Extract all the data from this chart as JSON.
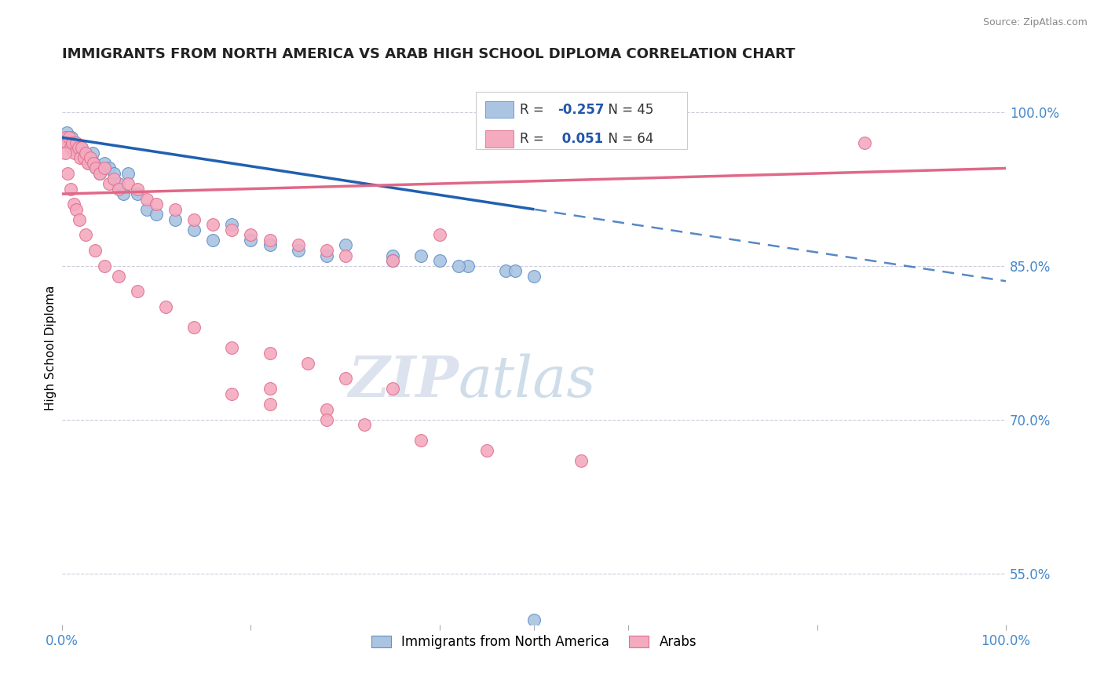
{
  "title": "IMMIGRANTS FROM NORTH AMERICA VS ARAB HIGH SCHOOL DIPLOMA CORRELATION CHART",
  "source": "Source: ZipAtlas.com",
  "ylabel": "High School Diploma",
  "xlim": [
    0.0,
    1.0
  ],
  "ylim": [
    0.5,
    1.04
  ],
  "yticks": [
    0.55,
    0.7,
    0.85,
    1.0
  ],
  "ytick_labels": [
    "55.0%",
    "70.0%",
    "85.0%",
    "100.0%"
  ],
  "blue_R": -0.257,
  "blue_N": 45,
  "pink_R": 0.051,
  "pink_N": 64,
  "blue_color": "#aac4e2",
  "pink_color": "#f4aabf",
  "blue_edge_color": "#6090c8",
  "pink_edge_color": "#e07090",
  "blue_line_color": "#2060b0",
  "pink_line_color": "#e06888",
  "legend_blue_label": "Immigrants from North America",
  "legend_pink_label": "Arabs",
  "watermark_zip": "ZIP",
  "watermark_atlas": "atlas",
  "blue_scatter_x": [
    0.005,
    0.008,
    0.01,
    0.012,
    0.014,
    0.016,
    0.018,
    0.02,
    0.022,
    0.024,
    0.026,
    0.028,
    0.03,
    0.032,
    0.034,
    0.036,
    0.04,
    0.045,
    0.05,
    0.055,
    0.06,
    0.065,
    0.07,
    0.08,
    0.09,
    0.1,
    0.12,
    0.14,
    0.16,
    0.18,
    0.2,
    0.22,
    0.25,
    0.28,
    0.3,
    0.35,
    0.38,
    0.4,
    0.43,
    0.47,
    0.5,
    0.35,
    0.42,
    0.48,
    0.5
  ],
  "blue_scatter_y": [
    0.98,
    0.97,
    0.975,
    0.97,
    0.97,
    0.965,
    0.96,
    0.965,
    0.96,
    0.955,
    0.955,
    0.95,
    0.955,
    0.96,
    0.95,
    0.945,
    0.94,
    0.95,
    0.945,
    0.94,
    0.93,
    0.92,
    0.94,
    0.92,
    0.905,
    0.9,
    0.895,
    0.885,
    0.875,
    0.89,
    0.875,
    0.87,
    0.865,
    0.86,
    0.87,
    0.86,
    0.86,
    0.855,
    0.85,
    0.845,
    0.84,
    0.855,
    0.85,
    0.845,
    0.505
  ],
  "pink_scatter_x": [
    0.003,
    0.005,
    0.007,
    0.009,
    0.011,
    0.013,
    0.015,
    0.017,
    0.019,
    0.021,
    0.023,
    0.025,
    0.027,
    0.03,
    0.033,
    0.036,
    0.04,
    0.045,
    0.05,
    0.055,
    0.06,
    0.07,
    0.08,
    0.09,
    0.1,
    0.12,
    0.14,
    0.16,
    0.18,
    0.2,
    0.22,
    0.25,
    0.28,
    0.3,
    0.35,
    0.4,
    0.003,
    0.006,
    0.009,
    0.012,
    0.015,
    0.018,
    0.025,
    0.035,
    0.045,
    0.06,
    0.08,
    0.11,
    0.14,
    0.18,
    0.22,
    0.26,
    0.3,
    0.35,
    0.22,
    0.28,
    0.32,
    0.38,
    0.45,
    0.55,
    0.85,
    0.18,
    0.22,
    0.28
  ],
  "pink_scatter_y": [
    0.975,
    0.97,
    0.975,
    0.965,
    0.97,
    0.96,
    0.97,
    0.965,
    0.955,
    0.965,
    0.955,
    0.96,
    0.95,
    0.955,
    0.95,
    0.945,
    0.94,
    0.945,
    0.93,
    0.935,
    0.925,
    0.93,
    0.925,
    0.915,
    0.91,
    0.905,
    0.895,
    0.89,
    0.885,
    0.88,
    0.875,
    0.87,
    0.865,
    0.86,
    0.855,
    0.88,
    0.96,
    0.94,
    0.925,
    0.91,
    0.905,
    0.895,
    0.88,
    0.865,
    0.85,
    0.84,
    0.825,
    0.81,
    0.79,
    0.77,
    0.765,
    0.755,
    0.74,
    0.73,
    0.73,
    0.71,
    0.695,
    0.68,
    0.67,
    0.66,
    0.97,
    0.725,
    0.715,
    0.7
  ]
}
